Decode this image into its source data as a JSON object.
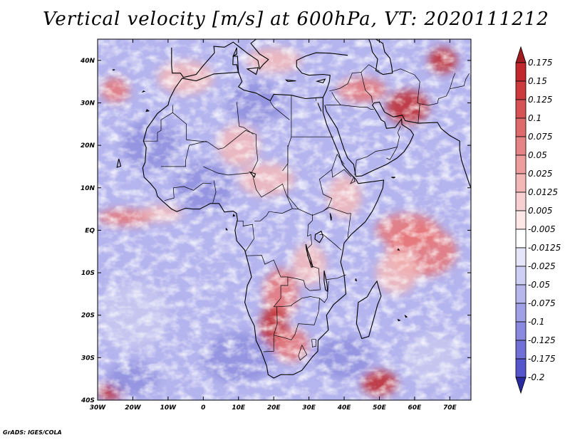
{
  "title": "Vertical velocity [m/s] at 600hPa, VT: 2020111212",
  "footer": "GrADS: IGES/COLA",
  "map": {
    "lon_range": [
      -30,
      76
    ],
    "lat_range": [
      -40,
      45
    ],
    "lon_ticks": [
      {
        "value": -30,
        "label": "30W"
      },
      {
        "value": -20,
        "label": "20W"
      },
      {
        "value": -10,
        "label": "10W"
      },
      {
        "value": 0,
        "label": "0"
      },
      {
        "value": 10,
        "label": "10E"
      },
      {
        "value": 20,
        "label": "20E"
      },
      {
        "value": 30,
        "label": "30E"
      },
      {
        "value": 40,
        "label": "40E"
      },
      {
        "value": 50,
        "label": "50E"
      },
      {
        "value": 60,
        "label": "60E"
      },
      {
        "value": 70,
        "label": "70E"
      }
    ],
    "lat_ticks": [
      {
        "value": 40,
        "label": "40N"
      },
      {
        "value": 30,
        "label": "30N"
      },
      {
        "value": 20,
        "label": "20N"
      },
      {
        "value": 10,
        "label": "10N"
      },
      {
        "value": 0,
        "label": "EQ"
      },
      {
        "value": -10,
        "label": "10S"
      },
      {
        "value": -20,
        "label": "20S"
      },
      {
        "value": -30,
        "label": "30S"
      },
      {
        "value": -40,
        "label": "40S"
      }
    ],
    "field_note": "Vertical velocity field shading",
    "colors": {
      "strong_positive": "#c0282d",
      "positive": "#e8787a",
      "weak_positive": "#f3b8b8",
      "neutral": "#ffffff",
      "weak_negative": "#c8c8f0",
      "negative": "#8f8fde",
      "strong_negative": "#3d3db8",
      "coast": "#000000"
    }
  },
  "colorbar": {
    "levels": [
      {
        "label": "0.175",
        "color": "#c0282d"
      },
      {
        "label": "0.15",
        "color": "#cc3a3d"
      },
      {
        "label": "0.125",
        "color": "#d65254"
      },
      {
        "label": "0.1",
        "color": "#df6a6c"
      },
      {
        "label": "0.075",
        "color": "#e68385"
      },
      {
        "label": "0.05",
        "color": "#ee9d9e"
      },
      {
        "label": "0.025",
        "color": "#f4b7b8"
      },
      {
        "label": "0.0125",
        "color": "#f8d0d1"
      },
      {
        "label": "0.005",
        "color": "#fde7e7"
      },
      {
        "label": "-0.005",
        "color": "#ffffff"
      },
      {
        "label": "-0.0125",
        "color": "#e6e6fa"
      },
      {
        "label": "-0.025",
        "color": "#cfcff5"
      },
      {
        "label": "-0.05",
        "color": "#b7b7ee"
      },
      {
        "label": "-0.075",
        "color": "#a0a0e7"
      },
      {
        "label": "-0.1",
        "color": "#8989e0"
      },
      {
        "label": "-0.125",
        "color": "#7070d6"
      },
      {
        "label": "-0.175",
        "color": "#5555cc"
      },
      {
        "label": "-0.2",
        "color": "#3d3db8"
      }
    ],
    "top_color": "#a01c20",
    "bottom_color": "#2a2aa0"
  }
}
